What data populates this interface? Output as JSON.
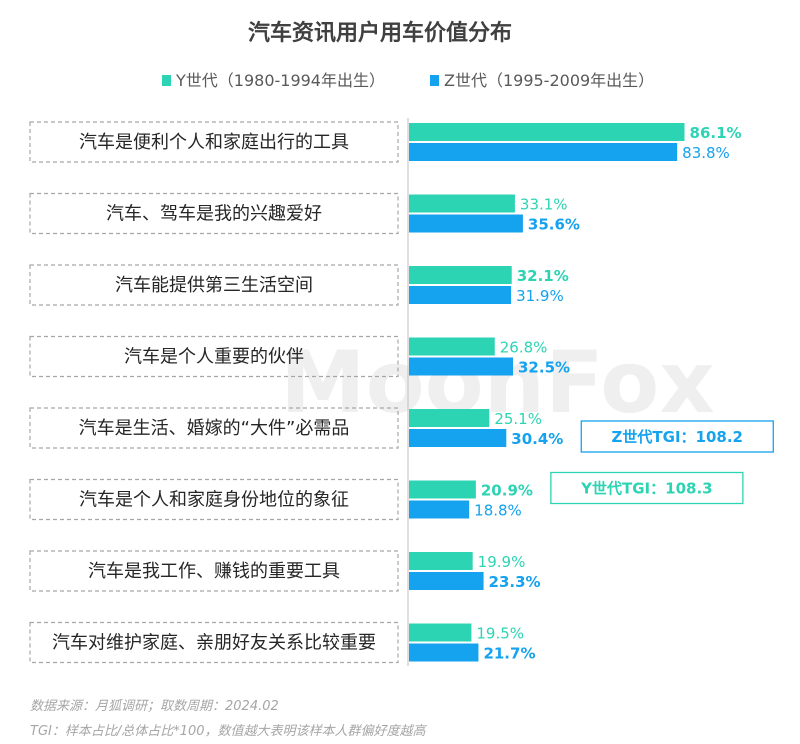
{
  "chart_data": {
    "type": "bar",
    "title": "汽车资讯用户用车价值分布",
    "orientation": "horizontal",
    "categories": [
      "汽车是便利个人和家庭出行的工具",
      "汽车、驾车是我的兴趣爱好",
      "汽车能提供第三生活空间",
      "汽车是个人重要的伙伴",
      "汽车是生活、婚嫁的“大件”必需品",
      "汽车是个人和家庭身份地位的象征",
      "汽车是我工作、赚钱的重要工具",
      "汽车对维护家庭、亲朋好友关系比较重要"
    ],
    "series": [
      {
        "name": "Y世代（1980-1994年出生）",
        "color": "#2dd4b4",
        "values": [
          86.1,
          33.1,
          32.1,
          26.8,
          25.1,
          20.9,
          19.9,
          19.5
        ],
        "labels": [
          "86.1%",
          "33.1%",
          "32.1%",
          "26.8%",
          "25.1%",
          "20.9%",
          "19.9%",
          "19.5%"
        ],
        "bold": [
          true,
          false,
          true,
          false,
          false,
          true,
          false,
          false
        ]
      },
      {
        "name": "Z世代（1995-2009年出生）",
        "color": "#15a2ee",
        "values": [
          83.8,
          35.6,
          31.9,
          32.5,
          30.4,
          18.8,
          23.3,
          21.7
        ],
        "labels": [
          "83.8%",
          "35.6%",
          "31.9%",
          "32.5%",
          "30.4%",
          "18.8%",
          "23.3%",
          "21.7%"
        ],
        "bold": [
          false,
          true,
          false,
          true,
          true,
          false,
          true,
          true
        ]
      }
    ],
    "unit": "%",
    "xlim": [
      0,
      100
    ],
    "annotations": [
      {
        "text": "Z世代TGI：108.2",
        "series": 1,
        "category": 4,
        "color": "#15a2ee"
      },
      {
        "text": "Y世代TGI：108.3",
        "series": 0,
        "category": 5,
        "color": "#2dd4b4"
      }
    ],
    "legend_position": "top",
    "grid": false
  },
  "notes": [
    "数据来源：月狐调研；取数周期：2024.02",
    "TGI：样本占比/总体占比*100，数值越大表明该样本人群偏好度越高"
  ],
  "watermark": "MoonFox"
}
